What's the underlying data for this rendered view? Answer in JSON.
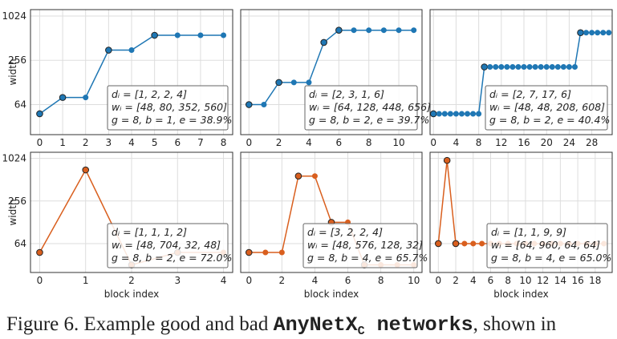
{
  "chart_data": [
    {
      "type": "line",
      "ylabel": "width",
      "x": [
        0,
        1,
        2,
        3,
        4,
        5,
        6,
        7,
        8
      ],
      "xlim": [
        -0.4,
        8.4
      ],
      "xticks": [
        0,
        1,
        2,
        3,
        4,
        5,
        6,
        7,
        8
      ],
      "ylim": [
        25,
        1250
      ],
      "yticks": [
        64,
        256,
        1024
      ],
      "ylog": true,
      "grid": true,
      "series": [
        {
          "color": "#1f77b4",
          "values": [
            48,
            80,
            80,
            352,
            352,
            560,
            560,
            560,
            560
          ]
        }
      ],
      "annotation": [
        "dᵢ = [1, 2, 2, 4]",
        "wᵢ = [48, 80, 352, 560]",
        "g = 8, b = 1, e = 38.9%"
      ]
    },
    {
      "type": "line",
      "x": [
        0,
        1,
        2,
        3,
        4,
        5,
        6,
        7,
        8,
        9,
        10,
        11
      ],
      "xlim": [
        -0.55,
        11.55
      ],
      "xticks": [
        0,
        2,
        4,
        6,
        8,
        10
      ],
      "ylim": [
        25,
        1250
      ],
      "yticks": [
        64,
        256,
        1024
      ],
      "ylog": true,
      "grid": true,
      "series": [
        {
          "color": "#1f77b4",
          "values": [
            64,
            64,
            128,
            128,
            128,
            448,
            656,
            656,
            656,
            656,
            656,
            656
          ]
        }
      ],
      "annotation": [
        "dᵢ = [2, 3, 1, 6]",
        "wᵢ = [64, 128, 448, 656]",
        "g = 8, b = 2, e = 39.7%"
      ]
    },
    {
      "type": "line",
      "x": [
        0,
        1,
        2,
        3,
        4,
        5,
        6,
        7,
        8,
        9,
        10,
        11,
        12,
        13,
        14,
        15,
        16,
        17,
        18,
        19,
        20,
        21,
        22,
        23,
        24,
        25,
        26,
        27,
        28,
        29,
        30,
        31
      ],
      "xlim": [
        -0.6,
        31.6
      ],
      "xticks": [
        0,
        4,
        8,
        12,
        16,
        20,
        24,
        28
      ],
      "ylim": [
        25,
        1250
      ],
      "yticks": [
        64,
        256,
        1024
      ],
      "ylog": true,
      "grid": true,
      "series": [
        {
          "color": "#1f77b4",
          "values": [
            48,
            48,
            48,
            48,
            48,
            48,
            48,
            48,
            48,
            208,
            208,
            208,
            208,
            208,
            208,
            208,
            208,
            208,
            208,
            208,
            208,
            208,
            208,
            208,
            208,
            208,
            608,
            608,
            608,
            608,
            608,
            608
          ]
        }
      ],
      "annotation": [
        "dᵢ = [2, 7, 17, 6]",
        "wᵢ = [48, 48, 208, 608]",
        "g = 8, b = 2, e = 40.4%"
      ]
    },
    {
      "type": "line",
      "ylabel": "width",
      "xlabel": "block index",
      "x": [
        0,
        1,
        2,
        3,
        4
      ],
      "xlim": [
        -0.2,
        4.2
      ],
      "xticks": [
        0,
        1,
        2,
        3,
        4
      ],
      "ylim": [
        25,
        1250
      ],
      "yticks": [
        64,
        256,
        1024
      ],
      "ylog": true,
      "grid": true,
      "series": [
        {
          "color": "#d95f1e",
          "values": [
            48,
            704,
            32,
            48,
            48
          ]
        }
      ],
      "annotation": [
        "dᵢ = [1, 1, 1, 2]",
        "wᵢ = [48, 704, 32, 48]",
        "g = 8, b = 2, e = 72.0%"
      ]
    },
    {
      "type": "line",
      "xlabel": "block index",
      "x": [
        0,
        1,
        2,
        3,
        4,
        5,
        6,
        7,
        8,
        9,
        10
      ],
      "xlim": [
        -0.5,
        10.5
      ],
      "xticks": [
        0,
        2,
        4,
        6,
        8,
        10
      ],
      "ylim": [
        25,
        1250
      ],
      "yticks": [
        64,
        256,
        1024
      ],
      "ylog": true,
      "grid": true,
      "series": [
        {
          "color": "#d95f1e",
          "values": [
            48,
            48,
            48,
            576,
            576,
            128,
            128,
            32,
            32,
            32,
            32
          ]
        }
      ],
      "annotation": [
        "dᵢ = [3, 2, 2, 4]",
        "wᵢ = [48, 576, 128, 32]",
        "g = 8, b = 4, e = 65.7%"
      ]
    },
    {
      "type": "line",
      "xlabel": "block index",
      "x": [
        0,
        1,
        2,
        3,
        4,
        5,
        6,
        7,
        8,
        9,
        10,
        11,
        12,
        13,
        14,
        15,
        16,
        17,
        18,
        19
      ],
      "xlim": [
        -0.95,
        19.95
      ],
      "xticks": [
        0,
        2,
        4,
        6,
        8,
        10,
        12,
        14,
        16,
        18
      ],
      "ylim": [
        25,
        1250
      ],
      "yticks": [
        64,
        256,
        1024
      ],
      "ylog": true,
      "grid": true,
      "series": [
        {
          "color": "#d95f1e",
          "values": [
            64,
            960,
            64,
            64,
            64,
            64,
            64,
            64,
            64,
            64,
            64,
            64,
            64,
            64,
            64,
            64,
            64,
            64,
            64,
            64
          ]
        }
      ],
      "annotation": [
        "dᵢ = [1, 1, 9, 9]",
        "wᵢ = [64, 960, 64, 64]",
        "g = 8, b = 4, e = 65.0%"
      ]
    }
  ],
  "caption": {
    "prefix": "Figure 6. Example good and bad ",
    "name": "AnyNetX",
    "sub": "C",
    "bold": " networks",
    "suffix": ", shown in"
  }
}
